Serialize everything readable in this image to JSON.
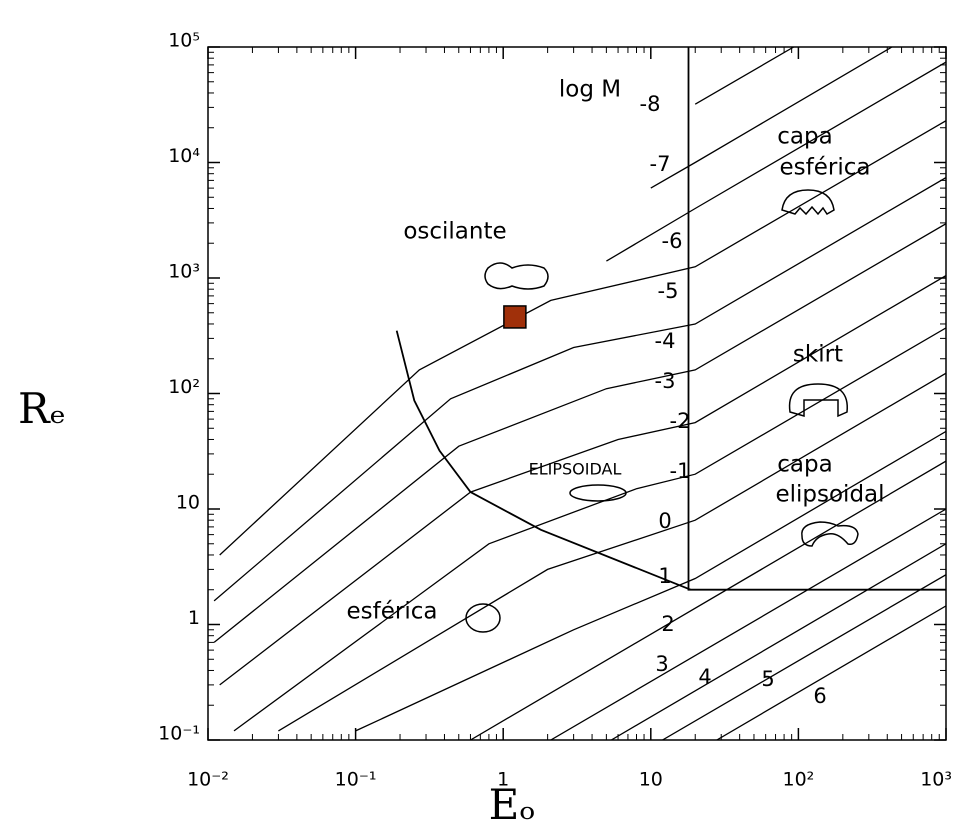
{
  "chart_data": {
    "type": "line",
    "x_label": "Eₒ",
    "y_label": "Rₑ",
    "log_x": true,
    "log_y": true,
    "minor_ticks": true,
    "xlim": [
      0.01,
      1000
    ],
    "ylim": [
      0.1,
      100000
    ],
    "xticks": [
      {
        "value": 0.01,
        "label": "10⁻²"
      },
      {
        "value": 0.1,
        "label": "10⁻¹"
      },
      1,
      10,
      {
        "value": 100,
        "label": "10²"
      },
      {
        "value": 1000,
        "label": "10³"
      }
    ],
    "yticks": [
      {
        "value": 0.1,
        "label": "10⁻¹"
      },
      1,
      10,
      {
        "value": 100,
        "label": "10²"
      },
      {
        "value": 1000,
        "label": "10³"
      },
      {
        "value": 10000,
        "label": "10⁴"
      },
      {
        "value": 100000,
        "label": "10⁵"
      }
    ],
    "contour_title": "log M",
    "series": [
      {
        "name": "-8",
        "color": "#000000",
        "x": [
          20,
          93
        ],
        "values": [
          32000,
          100000
        ]
      },
      {
        "name": "-7",
        "color": "#000000",
        "x": [
          10,
          20,
          430
        ],
        "values": [
          6000,
          10000,
          100000
        ]
      },
      {
        "name": "-6",
        "color": "#000000",
        "x": [
          5,
          20,
          1000
        ],
        "values": [
          1400,
          4000,
          74000
        ]
      },
      {
        "name": "-5",
        "color": "#000000",
        "x": [
          0.012,
          0.27,
          2.1,
          20,
          1000
        ],
        "values": [
          4,
          160,
          640,
          1250,
          23000
        ]
      },
      {
        "name": "-4",
        "color": "#000000",
        "x": [
          0.011,
          0.44,
          3,
          20,
          1000
        ],
        "values": [
          1.6,
          90,
          250,
          400,
          7400
        ]
      },
      {
        "name": "-3",
        "color": "#000000",
        "x": [
          0.011,
          0.5,
          5,
          20,
          1000
        ],
        "values": [
          0.7,
          35,
          110,
          160,
          2950
        ]
      },
      {
        "name": "-2",
        "color": "#000000",
        "x": [
          0.012,
          0.6,
          6,
          20,
          1000
        ],
        "values": [
          0.3,
          14,
          40,
          56,
          1050
        ]
      },
      {
        "name": "-1",
        "color": "#000000",
        "x": [
          0.015,
          0.8,
          8,
          20,
          1000
        ],
        "values": [
          0.12,
          5,
          15,
          20,
          370
        ]
      },
      {
        "name": "0",
        "color": "#000000",
        "x": [
          0.03,
          2,
          20,
          1000
        ],
        "values": [
          0.12,
          3,
          8,
          150
        ]
      },
      {
        "name": "1",
        "color": "#000000",
        "x": [
          0.1,
          3,
          20,
          1000
        ],
        "values": [
          0.12,
          0.9,
          2.5,
          47
        ]
      },
      {
        "name": "2",
        "color": "#000000",
        "x": [
          0.6,
          1000
        ],
        "values": [
          0.1,
          26
        ]
      },
      {
        "name": "3",
        "color": "#000000",
        "x": [
          2.1,
          1000
        ],
        "values": [
          0.1,
          10
        ]
      },
      {
        "name": "4",
        "color": "#000000",
        "x": [
          5.4,
          1000
        ],
        "values": [
          0.1,
          5
        ]
      },
      {
        "name": "5",
        "color": "#000000",
        "x": [
          12,
          1000
        ],
        "values": [
          0.1,
          2.7
        ]
      },
      {
        "name": "6",
        "color": "#000000",
        "x": [
          28,
          1000
        ],
        "values": [
          0.1,
          1.45
        ]
      }
    ],
    "boundaries": [
      {
        "color": "#000000",
        "x": [
          18,
          18,
          1000
        ],
        "values": [
          100000,
          2,
          2
        ]
      },
      {
        "color": "#000000",
        "x": [
          0.19,
          0.25,
          0.37,
          0.6,
          1.8,
          18.6
        ],
        "values": [
          350,
          87,
          32,
          14,
          6.6,
          2
        ]
      }
    ],
    "marker": {
      "x": 1.2,
      "y": 460,
      "color": "#a0300a"
    },
    "annotations": [
      "oscilante",
      "capa",
      "esférica",
      "skirt",
      "capa",
      "elipsoidal",
      "ELIPSOIDAL",
      "esférica"
    ]
  }
}
